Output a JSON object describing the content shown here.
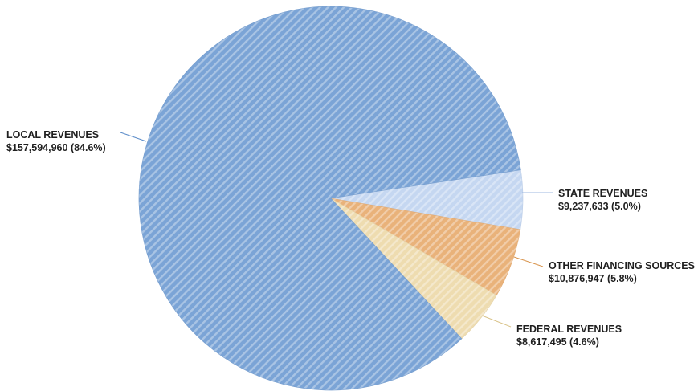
{
  "chart_data": {
    "type": "pie",
    "title": "",
    "slices": [
      {
        "name": "LOCAL REVENUES",
        "value_label": "$157,594,960 (84.6%)",
        "value": 157594960,
        "percent": 84.6,
        "color": "#7ba4d6"
      },
      {
        "name": "STATE REVENUES",
        "value_label": "$9,237,633 (5.0%)",
        "value": 9237633,
        "percent": 5.0,
        "color": "#c5d7f1"
      },
      {
        "name": "OTHER FINANCING SOURCES",
        "value_label": "$10,876,947 (5.8%)",
        "value": 10876947,
        "percent": 5.8,
        "color": "#e9b27a"
      },
      {
        "name": "FEDERAL REVENUES",
        "value_label": "$8,617,495 (4.6%)",
        "value": 8617495,
        "percent": 4.6,
        "color": "#eedcb0"
      }
    ],
    "slice_order": [
      "STATE REVENUES",
      "OTHER FINANCING SOURCES",
      "FEDERAL REVENUES",
      "LOCAL REVENUES"
    ],
    "start_angle_deg": -8.5,
    "direction": "clockwise",
    "fill_pattern": "diagonal-hatch",
    "legend": "none"
  }
}
